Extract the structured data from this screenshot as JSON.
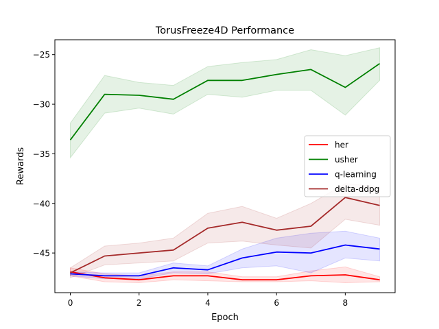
{
  "chart_data": {
    "type": "line",
    "title": "TorusFreeze4D Performance",
    "xlabel": "Epoch",
    "ylabel": "Rewards",
    "x": [
      0,
      1,
      2,
      3,
      4,
      5,
      6,
      7,
      8,
      9
    ],
    "xlim": [
      -0.45,
      9.45
    ],
    "ylim": [
      -49.0,
      -23.5
    ],
    "xticks": [
      0,
      2,
      4,
      6,
      8
    ],
    "yticks": [
      -45,
      -40,
      -35,
      -30,
      -25
    ],
    "grid": false,
    "legend_position": "center-right",
    "series": [
      {
        "name": "her",
        "color": "#ff0000",
        "values": [
          -46.9,
          -47.5,
          -47.7,
          -47.3,
          -47.3,
          -47.7,
          -47.7,
          -47.3,
          -47.2,
          -47.7
        ],
        "lower": [
          -47.3,
          -47.9,
          -48.0,
          -47.7,
          -47.8,
          -47.9,
          -47.9,
          -47.8,
          -48.0,
          -47.9
        ],
        "upper": [
          -46.5,
          -47.1,
          -47.3,
          -46.9,
          -46.9,
          -47.4,
          -47.4,
          -46.8,
          -46.4,
          -47.4
        ]
      },
      {
        "name": "usher",
        "color": "#008000",
        "values": [
          -33.6,
          -29.0,
          -29.1,
          -29.5,
          -27.6,
          -27.6,
          -27.0,
          -26.5,
          -28.3,
          -25.9
        ],
        "lower": [
          -35.4,
          -30.9,
          -30.4,
          -31.0,
          -29.0,
          -29.3,
          -28.6,
          -28.6,
          -31.1,
          -27.6
        ],
        "upper": [
          -31.9,
          -27.1,
          -27.8,
          -28.1,
          -26.2,
          -25.8,
          -25.5,
          -24.5,
          -25.1,
          -24.3
        ]
      },
      {
        "name": "q-learning",
        "color": "#0000ff",
        "values": [
          -47.1,
          -47.3,
          -47.3,
          -46.5,
          -46.7,
          -45.5,
          -44.9,
          -45.0,
          -44.2,
          -44.6
        ],
        "lower": [
          -47.3,
          -47.6,
          -47.6,
          -47.0,
          -47.1,
          -46.5,
          -46.3,
          -47.0,
          -45.5,
          -45.8
        ],
        "upper": [
          -46.9,
          -47.0,
          -47.0,
          -46.0,
          -46.3,
          -44.6,
          -43.5,
          -43.0,
          -42.8,
          -43.5
        ]
      },
      {
        "name": "delta-ddpg",
        "color": "#a52a2a",
        "values": [
          -47.0,
          -45.3,
          -45.0,
          -44.7,
          -42.5,
          -41.9,
          -42.7,
          -42.3,
          -39.4,
          -40.2
        ],
        "lower": [
          -47.5,
          -46.2,
          -46.0,
          -45.8,
          -44.0,
          -43.8,
          -44.2,
          -44.5,
          -41.6,
          -42.2
        ],
        "upper": [
          -46.5,
          -44.3,
          -44.0,
          -43.5,
          -41.0,
          -40.3,
          -41.5,
          -40.0,
          -38.0,
          -38.3
        ]
      }
    ]
  }
}
